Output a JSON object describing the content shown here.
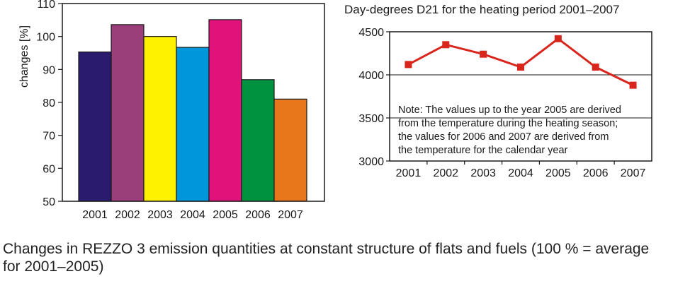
{
  "chart_data": [
    {
      "type": "bar",
      "title": "",
      "xlabel": "",
      "ylabel": "changes [%]",
      "ylim": [
        50,
        110
      ],
      "yticks": [
        50,
        60,
        70,
        80,
        90,
        100,
        110
      ],
      "grid": false,
      "categories": [
        "2001",
        "2002",
        "2003",
        "2004",
        "2005",
        "2006",
        "2007"
      ],
      "values": [
        95.3,
        103.6,
        100.0,
        96.7,
        105.1,
        86.9,
        81.0
      ],
      "colors": [
        "#2b1b6e",
        "#9b3f7a",
        "#fff200",
        "#0096dc",
        "#e0137a",
        "#00923f",
        "#e8771c"
      ]
    },
    {
      "type": "line",
      "title": "Day-degrees D21 for the heating period 2001–2007",
      "xlabel": "",
      "ylabel": "",
      "ylim": [
        3000,
        4500
      ],
      "yticks": [
        3000,
        3500,
        4000,
        4500
      ],
      "grid": true,
      "categories": [
        "2001",
        "2002",
        "2003",
        "2004",
        "2005",
        "2006",
        "2007"
      ],
      "values": [
        4120,
        4350,
        4240,
        4090,
        4420,
        4090,
        3880
      ],
      "color": "#d9261c",
      "note": [
        "Note: The values up to the year 2005 are derived",
        "from the temperature during the heating season;",
        "the values for 2006 and 2007 are derived from",
        "the temperature for the calendar year"
      ]
    }
  ],
  "caption": "Changes in REZZO 3 emission quantities at constant structure of flats and fuels (100 % = average for 2001–2005)"
}
